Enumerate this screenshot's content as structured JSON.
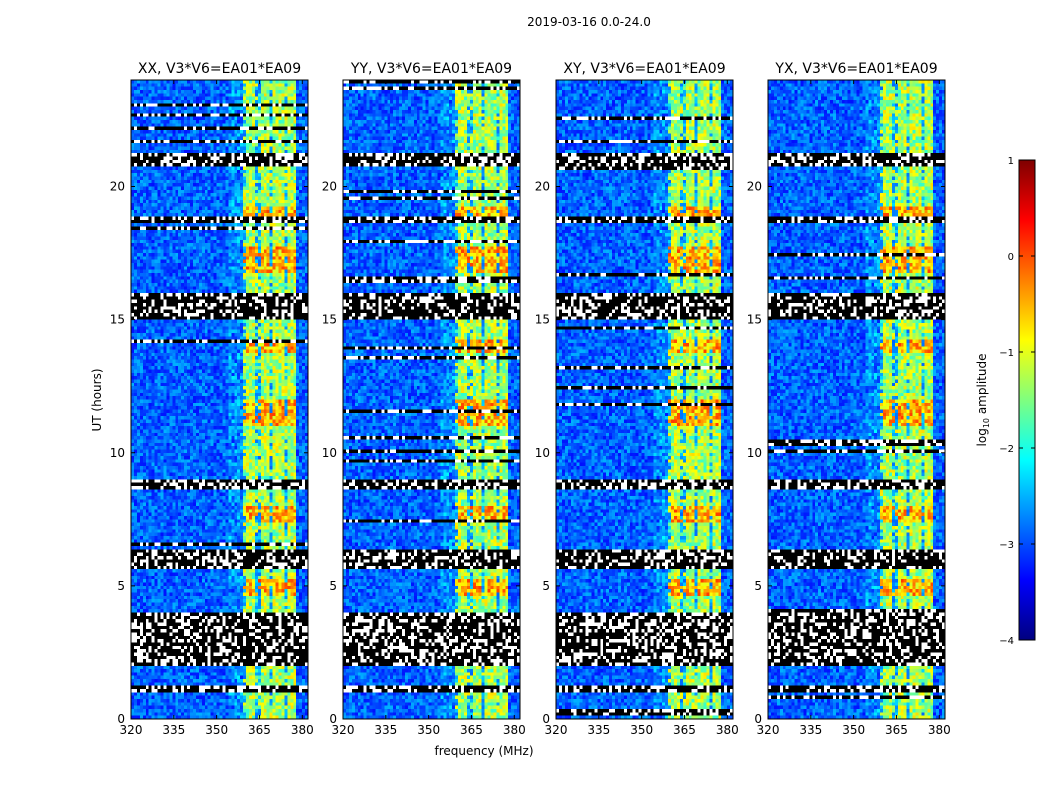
{
  "figure": {
    "suptitle": "2019-03-16 0.0-24.0",
    "xlabel": "frequency (MHz)",
    "ylabel": "UT (hours)"
  },
  "colorbar": {
    "label_base": "log",
    "label_sub": "10",
    "label_rest": " amplitude",
    "range": [
      -4,
      1
    ],
    "ticks": [
      1,
      0,
      -1,
      -2,
      -3,
      -4
    ],
    "tick_labels": [
      "1",
      "0",
      "−1",
      "−2",
      "−3",
      "−4"
    ],
    "colormap": [
      "#00007f",
      "#0000ff",
      "#007fff",
      "#00ffff",
      "#7fff7f",
      "#ffff00",
      "#ff7f00",
      "#ff0000",
      "#7f0000"
    ]
  },
  "chart_data": {
    "type": "heatmap",
    "title": "2019-03-16 0.0-24.0",
    "xlabel": "frequency (MHz)",
    "ylabel": "UT (hours)",
    "xlim": [
      320,
      382
    ],
    "ylim": [
      0,
      24
    ],
    "xticks": [
      320,
      335,
      350,
      365,
      380
    ],
    "yticks": [
      0,
      5,
      10,
      15,
      20
    ],
    "colorbar_range": [
      -4,
      1
    ],
    "colorbar_label": "log10 amplitude",
    "panels": [
      {
        "title": "XX, V3*V6=EA01*EA09",
        "strong_band_mhz": [
          359,
          378
        ]
      },
      {
        "title": "YY, V3*V6=EA01*EA09",
        "strong_band_mhz": [
          359,
          378
        ]
      },
      {
        "title": "XY, V3*V6=EA01*EA09",
        "strong_band_mhz": [
          359,
          378
        ]
      },
      {
        "title": "YX, V3*V6=EA01*EA09",
        "strong_band_mhz": [
          359,
          378
        ]
      }
    ],
    "flagged_time_ranges_hours": [
      [
        1.0,
        1.2
      ],
      [
        2.0,
        4.0
      ],
      [
        5.6,
        6.4
      ],
      [
        8.6,
        9.0
      ],
      [
        15.0,
        16.0
      ],
      [
        18.6,
        18.9
      ],
      [
        20.8,
        21.3
      ]
    ],
    "strong_time_ranges_hours": [
      [
        18.9,
        19.3
      ],
      [
        16.8,
        17.8
      ],
      [
        13.8,
        14.3
      ],
      [
        11.0,
        12.0
      ],
      [
        7.4,
        8.0
      ],
      [
        4.6,
        5.2
      ]
    ]
  }
}
